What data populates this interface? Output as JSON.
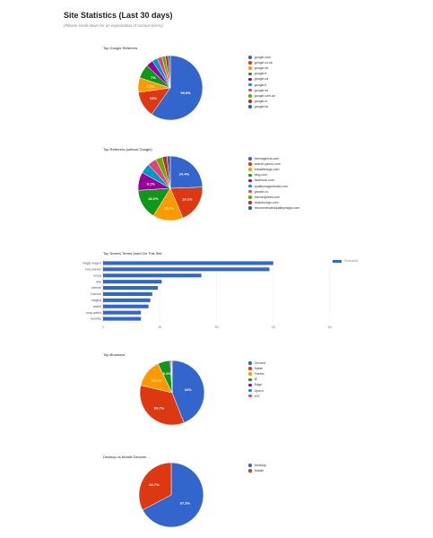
{
  "page": {
    "title": "Site Statistics (Last 30 days)",
    "note": "(Please scroll down for an explanation of various terms)"
  },
  "chart_data": [
    {
      "type": "pie",
      "title": "Top Google Referrers",
      "labels": [
        "google.com",
        "google.co.uk",
        "google.de",
        "google.fr",
        "google.ca",
        "google.it",
        "google.es",
        "google.com.au",
        "google.nl",
        "google.be"
      ],
      "values": [
        59.8,
        13.0,
        7.3,
        7.0,
        3.5,
        2.8,
        2.3,
        1.8,
        1.5,
        1.0
      ],
      "slice_labels": [
        "59.8%",
        "13%",
        "7.3%",
        "7%",
        "",
        "",
        "",
        "",
        "",
        ""
      ],
      "colors": [
        "#3366cc",
        "#dc3912",
        "#ff9900",
        "#109618",
        "#990099",
        "#0099c6",
        "#dd4477",
        "#66aa00",
        "#b82e2e",
        "#316395"
      ],
      "legend": "right"
    },
    {
      "type": "pie",
      "title": "Top Referrers (without Google)",
      "labels": [
        "themagicicle.com",
        "search.yahoo.com",
        "thewaltersgs.com",
        "bing.com",
        "facebook.com",
        "qualitymagicbooks.com",
        "yandex.ru",
        "themedpress.com",
        "duckduckgo.com",
        "recommendedqualitymagic.com"
      ],
      "values": [
        24.4,
        19.2,
        15.2,
        15.2,
        9.1,
        5.0,
        4.5,
        3.3,
        2.4,
        1.7
      ],
      "slice_labels": [
        "24.4%",
        "19.2%",
        "15.2%",
        "15.2%",
        "9.1%",
        "",
        "",
        "",
        "",
        ""
      ],
      "colors": [
        "#3366cc",
        "#dc3912",
        "#ff9900",
        "#109618",
        "#990099",
        "#0099c6",
        "#dd4477",
        "#66aa00",
        "#b82e2e",
        "#316395"
      ],
      "legend": "right"
    },
    {
      "type": "bar",
      "orientation": "horizontal",
      "title": "Top Search Terms Used On This Site",
      "categories": [
        "magic wagon",
        "rory warner",
        "lenya",
        "dire",
        "warner",
        "Cobcob",
        "magics",
        "wallet",
        "rung wallet",
        "bumble"
      ],
      "values": [
        45,
        44,
        26,
        15.5,
        14.5,
        13,
        12.5,
        12,
        10,
        10
      ],
      "series": [
        {
          "name": "Searches",
          "values": [
            45,
            44,
            26,
            15.5,
            14.5,
            13,
            12.5,
            12,
            10,
            10
          ]
        }
      ],
      "xlim": [
        0,
        60
      ],
      "xticks": [
        "0",
        "15",
        "30",
        "45",
        "60"
      ],
      "color": "#3366cc",
      "legend": "right"
    },
    {
      "type": "pie",
      "title": "Top Browsers",
      "labels": [
        "Chrome",
        "Safari",
        "Firefox",
        "IE",
        "Edge",
        "Opera",
        "iOS"
      ],
      "values": [
        44.0,
        34.7,
        14.1,
        6.2,
        0.5,
        0.3,
        0.2
      ],
      "slice_labels": [
        "44%",
        "34.7%",
        "14.1%",
        "6.2%",
        "",
        "",
        ""
      ],
      "colors": [
        "#3366cc",
        "#dc3912",
        "#ff9900",
        "#109618",
        "#990099",
        "#0099c6",
        "#dd4477"
      ],
      "legend": "right"
    },
    {
      "type": "pie",
      "title": "Desktop vs Mobile Devices",
      "labels": [
        "Desktop",
        "Mobile"
      ],
      "values": [
        67.3,
        32.7
      ],
      "slice_labels": [
        "67.3%",
        "32.7%"
      ],
      "colors": [
        "#3366cc",
        "#dc3912"
      ],
      "legend": "right"
    }
  ]
}
